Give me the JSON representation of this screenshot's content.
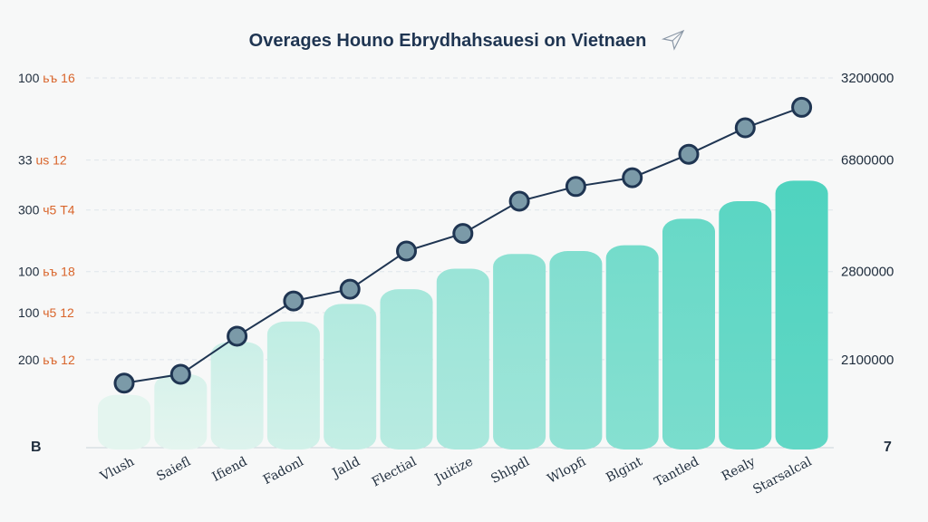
{
  "chart_data": {
    "type": "bar",
    "title": "Overages Houno Ebrydhahsauesi on Vietnaen",
    "categories": [
      "Vlush",
      "Saiefl",
      "Ifiend",
      "Fadonl",
      "Jalld",
      "Flectial",
      "Juitize",
      "Shlpdl",
      "Wlopfi",
      "Blgint",
      "Tantled",
      "Realy",
      "Starsalcal"
    ],
    "series": [
      {
        "name": "bars",
        "values": [
          0.9,
          1.25,
          1.8,
          2.15,
          2.45,
          2.7,
          3.05,
          3.3,
          3.35,
          3.45,
          3.9,
          4.2,
          4.55
        ]
      },
      {
        "name": "line",
        "values": [
          1.1,
          1.25,
          1.9,
          2.5,
          2.7,
          3.35,
          3.65,
          4.2,
          4.45,
          4.6,
          5.0,
          5.45,
          5.8
        ]
      }
    ],
    "ylim": [
      0,
      6.3
    ],
    "yticks_left": [
      {
        "num": "100",
        "suffix": "ьъ 16",
        "level": 6.3
      },
      {
        "num": "33",
        "suffix": "us 12",
        "level": 4.9
      },
      {
        "num": "300",
        "suffix": "ч5 T4",
        "level": 4.05
      },
      {
        "num": "100",
        "suffix": "ьъ 18",
        "level": 3.0
      },
      {
        "num": "100",
        "suffix": "ч5 12",
        "level": 2.3
      },
      {
        "num": "200",
        "suffix": "ьъ 12",
        "level": 1.5
      }
    ],
    "yticks_right": [
      {
        "label": "3200000",
        "level": 6.3
      },
      {
        "label": "6800000",
        "level": 4.9
      },
      {
        "label": "2800000",
        "level": 3.0
      },
      {
        "label": "2100000",
        "level": 1.5
      }
    ],
    "corner_left": "B",
    "corner_right": "7",
    "grid": true
  },
  "colors": {
    "title": "#1f3552",
    "tick_num": "#1f2d3d",
    "tick_suffix": "#d9652b",
    "line": "#1f3552",
    "marker_fill": "#7b9aa8",
    "grid": "#dfe5ea",
    "bar_light": "#e4f5ef",
    "bar_dark": "#4fd3bf"
  }
}
